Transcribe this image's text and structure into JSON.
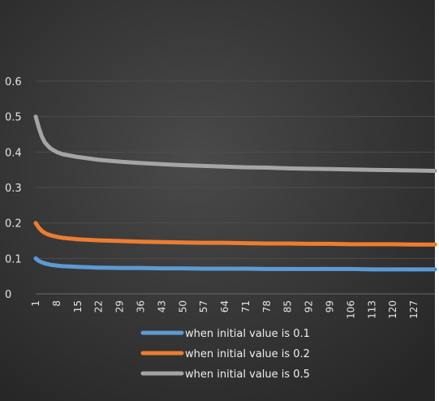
{
  "chart_data": {
    "type": "line",
    "title": "",
    "xlabel": "",
    "ylabel": "",
    "ylim": [
      0,
      0.6
    ],
    "yticks": [
      0,
      0.1,
      0.2,
      0.3,
      0.4,
      0.5,
      0.6
    ],
    "ytick_labels": [
      "0",
      "0.1",
      "0.2",
      "0.3",
      "0.4",
      "0.5",
      "0.6"
    ],
    "x_range": [
      1,
      134
    ],
    "xticks": [
      1,
      8,
      15,
      22,
      29,
      36,
      43,
      50,
      57,
      64,
      71,
      78,
      85,
      92,
      99,
      106,
      113,
      120,
      127
    ],
    "xtick_labels": [
      "1",
      "8",
      "15",
      "22",
      "29",
      "36",
      "43",
      "50",
      "57",
      "64",
      "71",
      "78",
      "85",
      "92",
      "99",
      "106",
      "113",
      "120",
      "127"
    ],
    "grid": true,
    "legend_position": "bottom",
    "background": "#2f2f2f",
    "series": [
      {
        "name": "when initial value is 0.1",
        "color": "#5b9bd5",
        "x": [
          1,
          2,
          3,
          4,
          5,
          6,
          8,
          10,
          15,
          22,
          29,
          36,
          43,
          50,
          57,
          64,
          71,
          78,
          85,
          92,
          99,
          106,
          113,
          120,
          127,
          134
        ],
        "y": [
          0.1,
          0.093,
          0.089,
          0.086,
          0.084,
          0.082,
          0.08,
          0.078,
          0.076,
          0.074,
          0.073,
          0.073,
          0.072,
          0.072,
          0.071,
          0.071,
          0.071,
          0.07,
          0.07,
          0.07,
          0.07,
          0.07,
          0.069,
          0.069,
          0.069,
          0.069
        ]
      },
      {
        "name": "when initial value is 0.2",
        "color": "#ed7d31",
        "x": [
          1,
          2,
          3,
          4,
          5,
          6,
          8,
          10,
          15,
          22,
          29,
          36,
          43,
          50,
          57,
          64,
          71,
          78,
          85,
          92,
          99,
          106,
          113,
          120,
          127,
          134
        ],
        "y": [
          0.2,
          0.187,
          0.178,
          0.172,
          0.168,
          0.165,
          0.161,
          0.158,
          0.154,
          0.151,
          0.149,
          0.147,
          0.146,
          0.145,
          0.144,
          0.144,
          0.143,
          0.142,
          0.142,
          0.141,
          0.141,
          0.14,
          0.14,
          0.14,
          0.139,
          0.139
        ]
      },
      {
        "name": "when initial value is 0.5",
        "color": "#a5a5a5",
        "x": [
          1,
          2,
          3,
          4,
          5,
          6,
          8,
          10,
          15,
          22,
          29,
          36,
          43,
          50,
          57,
          64,
          71,
          78,
          85,
          92,
          99,
          106,
          113,
          120,
          127,
          134
        ],
        "y": [
          0.5,
          0.47,
          0.445,
          0.428,
          0.418,
          0.41,
          0.4,
          0.394,
          0.386,
          0.378,
          0.373,
          0.369,
          0.366,
          0.363,
          0.361,
          0.359,
          0.357,
          0.356,
          0.354,
          0.353,
          0.352,
          0.351,
          0.35,
          0.349,
          0.348,
          0.347
        ]
      }
    ]
  }
}
